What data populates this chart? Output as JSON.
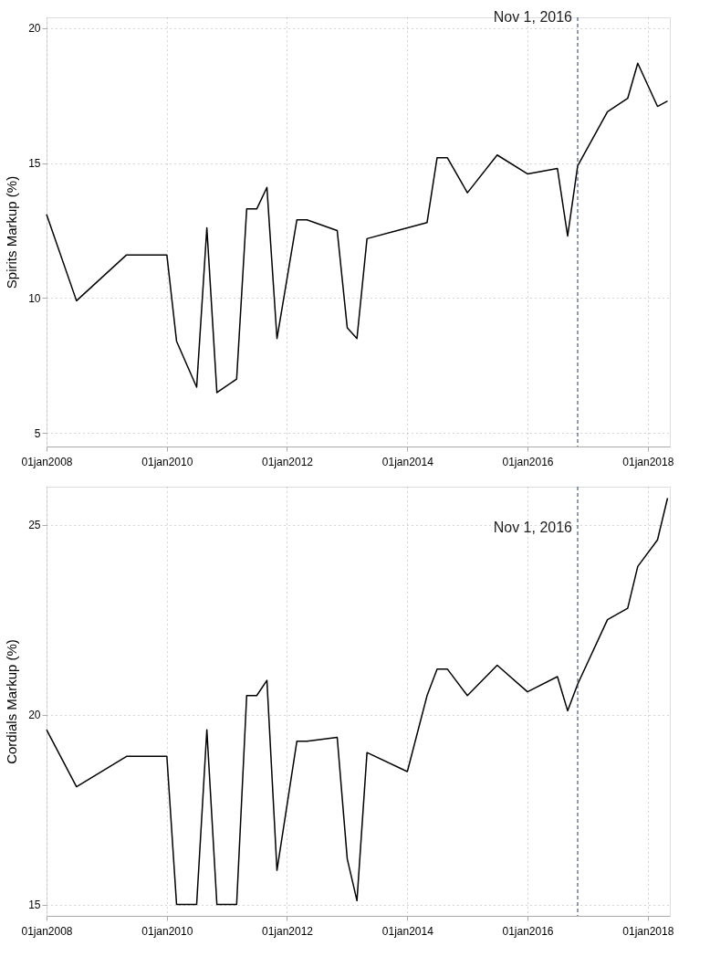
{
  "chart_data": [
    {
      "type": "line",
      "ylabel": "Spirits Markup (%)",
      "xlim": [
        "2008-01-01",
        "2018-05-15"
      ],
      "ylim": [
        4.5,
        20.4
      ],
      "yticks": [
        5,
        10,
        15,
        20
      ],
      "xticks": [
        {
          "value": "2008-01-01",
          "label": "01jan2008"
        },
        {
          "value": "2010-01-01",
          "label": "01jan2010"
        },
        {
          "value": "2012-01-01",
          "label": "01jan2012"
        },
        {
          "value": "2014-01-01",
          "label": "01jan2014"
        },
        {
          "value": "2016-01-01",
          "label": "01jan2016"
        },
        {
          "value": "2018-01-01",
          "label": "01jan2018"
        }
      ],
      "grid": true,
      "line_style": "solid",
      "marker": "none",
      "series": [
        {
          "color": "#000000",
          "x": [
            "2008-01",
            "2008-07",
            "2009-05",
            "2010-01",
            "2010-03",
            "2010-07",
            "2010-09",
            "2010-11",
            "2011-03",
            "2011-05",
            "2011-07",
            "2011-09",
            "2011-11",
            "2012-03",
            "2012-05",
            "2012-11",
            "2013-01",
            "2013-03",
            "2013-05",
            "2014-05",
            "2014-07",
            "2014-09",
            "2015-01",
            "2015-07",
            "2016-01",
            "2016-07",
            "2016-09",
            "2016-11",
            "2017-05",
            "2017-09",
            "2017-11",
            "2018-03",
            "2018-05"
          ],
          "values": [
            13.1,
            9.9,
            11.6,
            11.6,
            8.4,
            6.7,
            12.6,
            6.5,
            7.0,
            13.3,
            13.3,
            14.1,
            8.5,
            12.9,
            12.9,
            12.5,
            8.9,
            8.5,
            12.2,
            12.8,
            15.2,
            15.2,
            13.9,
            15.3,
            14.6,
            14.8,
            12.3,
            14.9,
            16.9,
            17.4,
            18.7,
            17.1,
            17.3
          ]
        }
      ],
      "ref_lines": [
        {
          "axis": "x",
          "value": "2016-11-01",
          "label": "Nov 1, 2016",
          "color": "#1f3a68",
          "line_style": "dashed"
        }
      ]
    },
    {
      "type": "line",
      "ylabel": "Cordials Markup (%)",
      "xlim": [
        "2008-01-01",
        "2018-05-15"
      ],
      "ylim": [
        14.7,
        26.0
      ],
      "yticks": [
        15,
        20,
        25
      ],
      "xticks": [
        {
          "value": "2008-01-01",
          "label": "01jan2008"
        },
        {
          "value": "2010-01-01",
          "label": "01jan2010"
        },
        {
          "value": "2012-01-01",
          "label": "01jan2012"
        },
        {
          "value": "2014-01-01",
          "label": "01jan2014"
        },
        {
          "value": "2016-01-01",
          "label": "01jan2016"
        },
        {
          "value": "2018-01-01",
          "label": "01jan2018"
        }
      ],
      "grid": true,
      "line_style": "solid",
      "marker": "none",
      "series": [
        {
          "color": "#000000",
          "x": [
            "2008-01",
            "2008-07",
            "2009-05",
            "2010-01",
            "2010-03",
            "2010-07",
            "2010-09",
            "2010-11",
            "2011-03",
            "2011-05",
            "2011-07",
            "2011-09",
            "2011-11",
            "2012-03",
            "2012-05",
            "2012-11",
            "2013-01",
            "2013-03",
            "2013-05",
            "2014-01",
            "2014-05",
            "2014-07",
            "2014-09",
            "2015-01",
            "2015-07",
            "2016-01",
            "2016-07",
            "2016-09",
            "2016-11",
            "2017-05",
            "2017-09",
            "2017-11",
            "2018-03",
            "2018-05"
          ],
          "values": [
            19.6,
            18.1,
            18.9,
            18.9,
            15.0,
            15.0,
            19.6,
            15.0,
            15.0,
            20.5,
            20.5,
            20.9,
            15.9,
            19.3,
            19.3,
            19.4,
            16.2,
            15.1,
            19.0,
            18.5,
            20.5,
            21.2,
            21.2,
            20.5,
            21.3,
            20.6,
            21.0,
            20.1,
            20.8,
            22.5,
            22.8,
            23.9,
            24.6,
            25.7
          ]
        }
      ],
      "ref_lines": [
        {
          "axis": "x",
          "value": "2016-11-01",
          "label": "Nov 1, 2016",
          "color": "#1f3a68",
          "line_style": "dashed"
        }
      ]
    }
  ]
}
